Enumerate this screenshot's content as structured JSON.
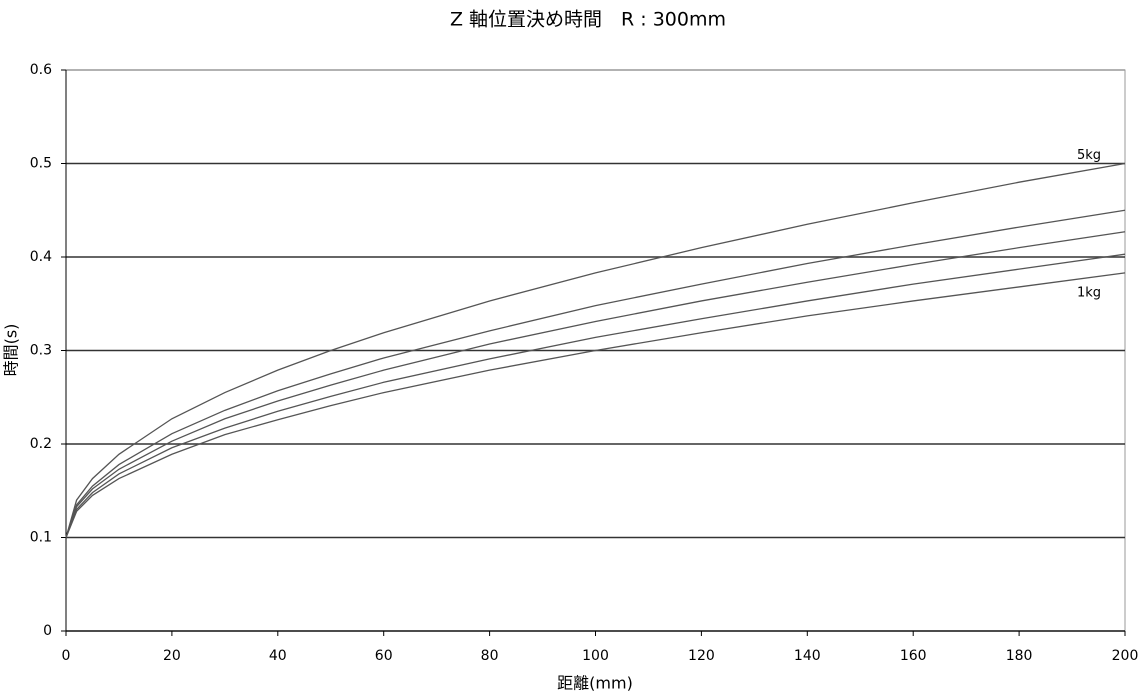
{
  "chart_data": {
    "type": "line",
    "title": "Z 軸位置決め時間　R : 300mm",
    "x_label": "距離(mm)",
    "y_label": "時間(s)",
    "x": [
      0,
      2,
      5,
      10,
      20,
      30,
      40,
      50,
      60,
      80,
      100,
      120,
      140,
      160,
      180,
      200
    ],
    "series": [
      {
        "color": "#555555",
        "values": [
          0.1,
          0.14,
          0.163,
          0.189,
          0.227,
          0.255,
          0.279,
          0.3,
          0.319,
          0.353,
          0.383,
          0.41,
          0.435,
          0.458,
          0.48,
          0.5
        ]
      },
      {
        "color": "#555555",
        "values": [
          0.1,
          0.135,
          0.155,
          0.178,
          0.211,
          0.236,
          0.257,
          0.275,
          0.292,
          0.321,
          0.348,
          0.371,
          0.393,
          0.413,
          0.432,
          0.45
        ]
      },
      {
        "color": "#555555",
        "values": [
          0.1,
          0.133,
          0.152,
          0.173,
          0.203,
          0.227,
          0.246,
          0.263,
          0.279,
          0.307,
          0.331,
          0.353,
          0.373,
          0.392,
          0.41,
          0.427
        ]
      },
      {
        "color": "#555555",
        "values": [
          0.1,
          0.13,
          0.148,
          0.168,
          0.196,
          0.217,
          0.235,
          0.251,
          0.266,
          0.291,
          0.314,
          0.334,
          0.353,
          0.371,
          0.387,
          0.403
        ]
      },
      {
        "color": "#555555",
        "values": [
          0.1,
          0.128,
          0.145,
          0.163,
          0.189,
          0.21,
          0.226,
          0.241,
          0.255,
          0.279,
          0.3,
          0.319,
          0.337,
          0.353,
          0.368,
          0.383
        ]
      }
    ],
    "annotations": [
      "5kg",
      "1kg"
    ],
    "xlim": [
      0,
      200
    ],
    "xticks": [
      0,
      20,
      40,
      60,
      80,
      100,
      120,
      140,
      160,
      180,
      200
    ],
    "ylim": [
      0,
      0.6
    ],
    "yticks": [
      0,
      0.1,
      0.2,
      0.3,
      0.4,
      0.5,
      0.6
    ],
    "grid": true
  }
}
